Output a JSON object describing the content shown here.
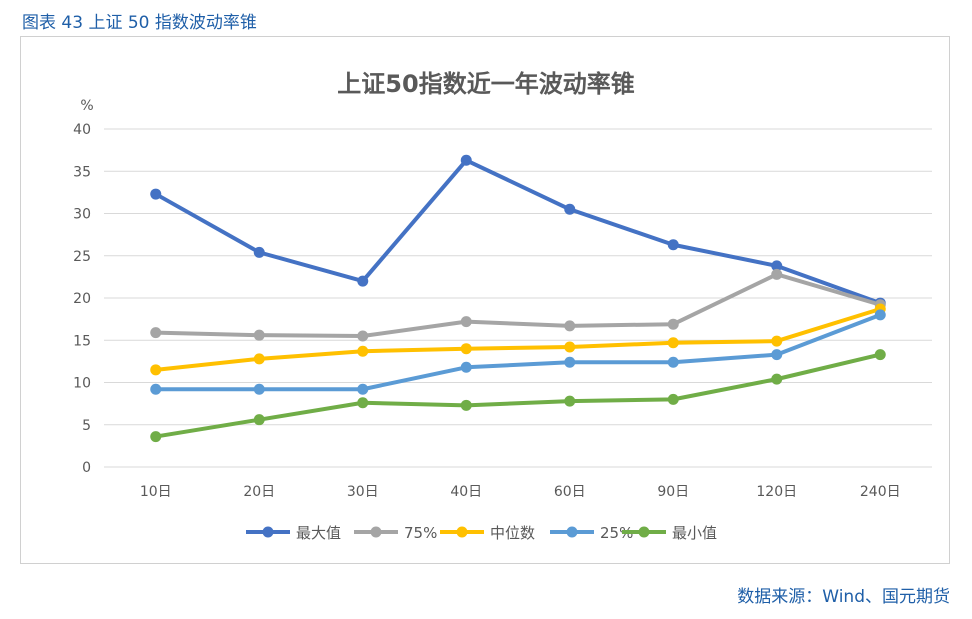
{
  "caption": "图表 43 上证 50 指数波动率锥",
  "source": "数据来源：Wind、国元期货",
  "chart_data": {
    "type": "line",
    "title": "上证50指数近一年波动率锥",
    "ylabel": "%",
    "ylim": [
      0,
      40
    ],
    "yticks": [
      0,
      5,
      10,
      15,
      20,
      25,
      30,
      35,
      40
    ],
    "grid": true,
    "legend": "bottom",
    "categories": [
      "10日",
      "20日",
      "30日",
      "40日",
      "60日",
      "90日",
      "120日",
      "240日"
    ],
    "series": [
      {
        "name": "最大值",
        "color": "#4472c4",
        "values": [
          32.3,
          25.4,
          22.0,
          36.3,
          30.5,
          26.3,
          23.8,
          19.4
        ]
      },
      {
        "name": "75%",
        "color": "#a5a5a5",
        "values": [
          15.9,
          15.6,
          15.5,
          17.2,
          16.7,
          16.9,
          22.8,
          19.2
        ]
      },
      {
        "name": "中位数",
        "color": "#ffc000",
        "values": [
          11.5,
          12.8,
          13.7,
          14.0,
          14.2,
          14.7,
          14.9,
          18.7
        ]
      },
      {
        "name": "25%",
        "color": "#5b9bd5",
        "values": [
          9.2,
          9.2,
          9.2,
          11.8,
          12.4,
          12.4,
          13.3,
          18.0
        ]
      },
      {
        "name": "最小值",
        "color": "#70ad47",
        "values": [
          3.6,
          5.6,
          7.6,
          7.3,
          7.8,
          8.0,
          10.4,
          13.3
        ]
      }
    ]
  }
}
